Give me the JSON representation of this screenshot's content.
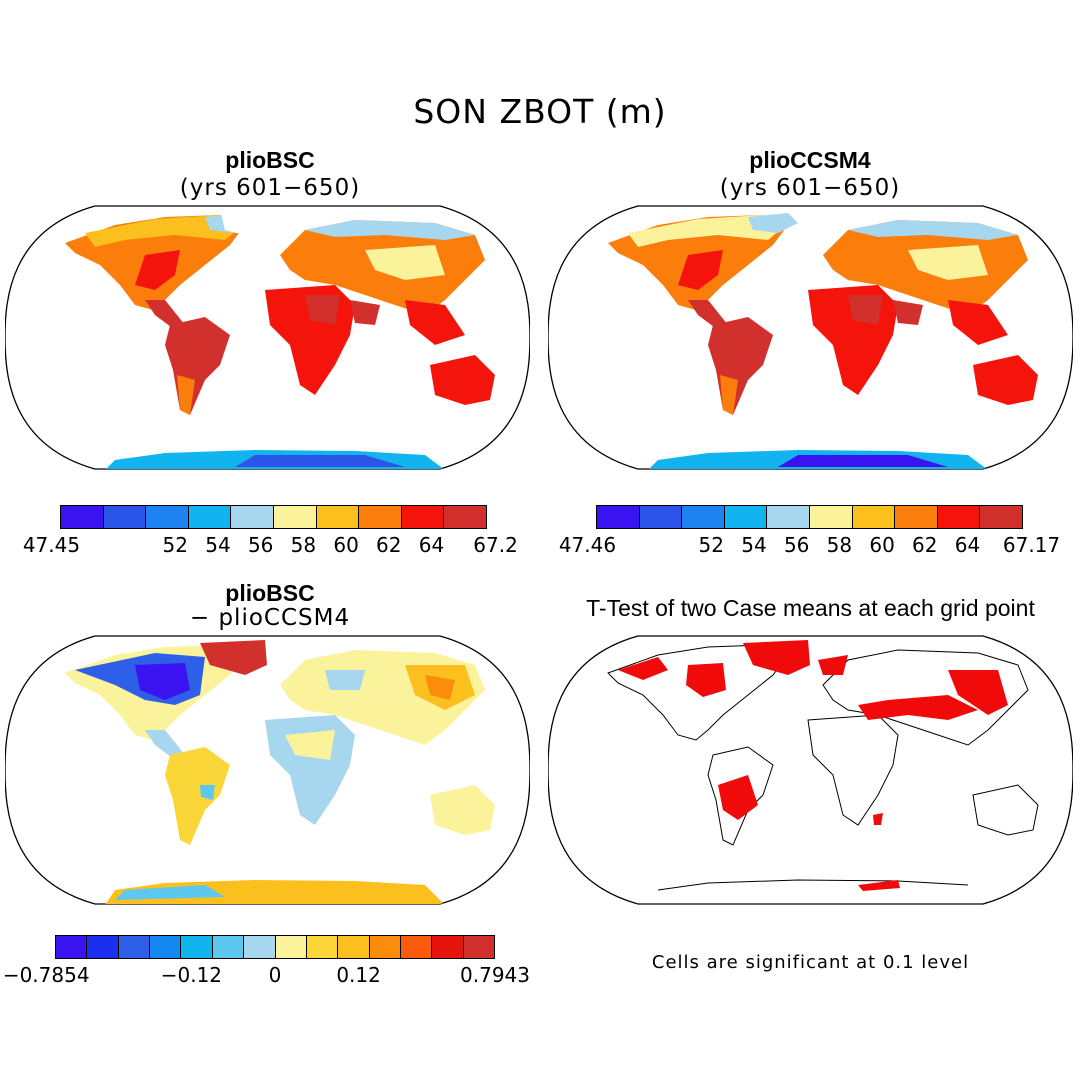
{
  "title": "SON ZBOT (m)",
  "panels": [
    {
      "title": "plioBSC",
      "subtitle": "(yrs 601−650)"
    },
    {
      "title": "plioCCSM4",
      "subtitle": "(yrs 601−650)"
    },
    {
      "title": "plioBSC",
      "subtitle": "− plioCCSM4"
    },
    {
      "title": "T-Test of two Case means at each grid point",
      "subtitle": ""
    }
  ],
  "colorbars": [
    {
      "colors": [
        "#3a14f0",
        "#2b55e8",
        "#1e82f0",
        "#12b4f0",
        "#a6d7ef",
        "#fbf39b",
        "#fbbf1e",
        "#fb7d0c",
        "#f5140c",
        "#d2302c"
      ],
      "ticks": [
        "47.45",
        "52",
        "54",
        "56",
        "58",
        "60",
        "62",
        "64",
        "67.2"
      ]
    },
    {
      "colors": [
        "#3a14f0",
        "#2b55e8",
        "#1e82f0",
        "#12b4f0",
        "#a6d7ef",
        "#fbf39b",
        "#fbbf1e",
        "#fb7d0c",
        "#f5140c",
        "#d2302c"
      ],
      "ticks": [
        "47.46",
        "52",
        "54",
        "56",
        "58",
        "60",
        "62",
        "64",
        "67.17"
      ]
    },
    {
      "colors": [
        "#3a14f0",
        "#1a2ff0",
        "#2e5fe8",
        "#1288f0",
        "#12b4f0",
        "#5cc8f0",
        "#a6d7ef",
        "#fbf39b",
        "#fbd638",
        "#fbbf1e",
        "#fb8c0c",
        "#fb5a0c",
        "#e6140c",
        "#d2302c"
      ],
      "ticks": [
        "−0.7854",
        "−0.12",
        "0",
        "0.12",
        "0.7943"
      ]
    }
  ],
  "note": "Cells are significant at 0.1 level"
}
